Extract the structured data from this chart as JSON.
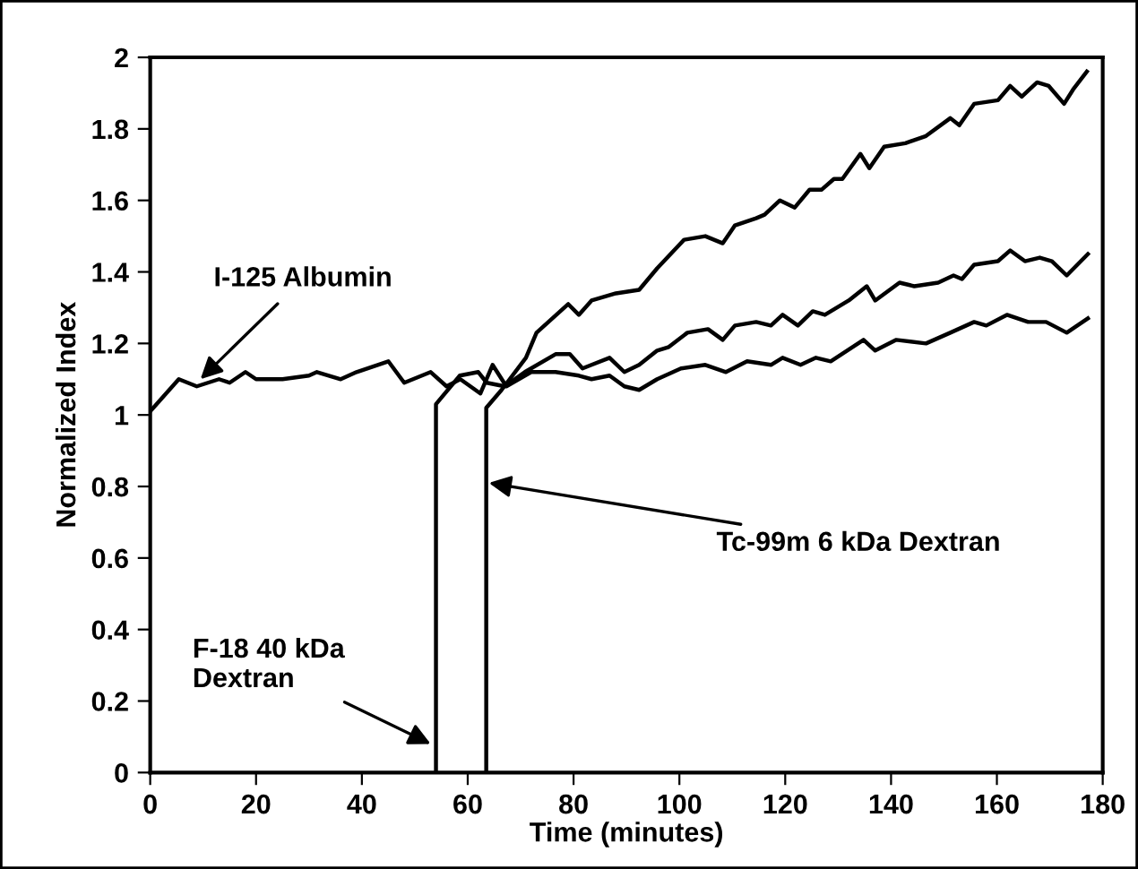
{
  "chart_data": {
    "type": "line",
    "xlabel": "Time (minutes)",
    "ylabel": "Normalized Index",
    "xlim": [
      0,
      180
    ],
    "xticks": [
      0,
      20,
      40,
      60,
      80,
      100,
      120,
      140,
      160,
      180
    ],
    "ylim": [
      0,
      2
    ],
    "yticks": [
      0,
      0.2,
      0.4,
      0.6,
      0.8,
      1,
      1.2,
      1.4,
      1.6,
      1.8,
      2
    ],
    "grid": false,
    "legend": false,
    "marker": "none",
    "line_style": "solid",
    "series": [
      {
        "color": "#000000",
        "x": [
          0,
          5.4,
          8.8,
          13,
          15,
          18,
          20,
          25,
          30,
          31.5,
          36,
          39,
          45,
          48,
          53,
          56,
          58.6,
          62.4,
          64.7,
          67.3,
          72,
          76.6,
          81,
          83.4,
          86.8,
          89.6,
          92.4,
          95.8,
          100.3,
          104.9,
          108.8,
          112.8,
          117.3,
          119.5,
          122.9,
          125.8,
          128.6,
          134.8,
          137,
          141,
          146.6,
          151.2,
          155.7,
          158,
          161.9,
          165.9,
          169.3,
          173.2,
          177.2
        ],
        "values": [
          1.01,
          1.1,
          1.08,
          1.1,
          1.09,
          1.12,
          1.1,
          1.1,
          1.11,
          1.12,
          1.1,
          1.12,
          1.15,
          1.09,
          1.12,
          1.08,
          1.1,
          1.06,
          1.14,
          1.08,
          1.12,
          1.12,
          1.11,
          1.1,
          1.11,
          1.08,
          1.07,
          1.1,
          1.13,
          1.14,
          1.12,
          1.15,
          1.14,
          1.16,
          1.14,
          1.16,
          1.15,
          1.21,
          1.18,
          1.21,
          1.2,
          1.23,
          1.26,
          1.25,
          1.28,
          1.26,
          1.26,
          1.23,
          1.27
        ]
      },
      {
        "color": "#000000",
        "x": [
          54,
          54,
          58.5,
          62,
          63.6,
          67,
          70.8,
          76.6,
          79.3,
          81.7,
          83.4,
          86.8,
          89.6,
          92.4,
          95.8,
          98,
          101.5,
          105.4,
          108.2,
          110.5,
          114.5,
          117.3,
          119.5,
          122.4,
          125.2,
          127.5,
          132,
          135.4,
          137,
          141.6,
          144.4,
          148.9,
          151.8,
          153.4,
          155.7,
          160.2,
          162.5,
          165.3,
          168.1,
          170.4,
          173.2,
          177.2
        ],
        "values": [
          0,
          1.03,
          1.11,
          1.12,
          1.09,
          1.08,
          1.12,
          1.17,
          1.17,
          1.13,
          1.14,
          1.16,
          1.12,
          1.14,
          1.18,
          1.19,
          1.23,
          1.24,
          1.21,
          1.25,
          1.26,
          1.25,
          1.28,
          1.25,
          1.29,
          1.28,
          1.32,
          1.36,
          1.32,
          1.37,
          1.36,
          1.37,
          1.39,
          1.38,
          1.42,
          1.43,
          1.46,
          1.43,
          1.44,
          1.43,
          1.39,
          1.45
        ]
      },
      {
        "color": "#000000",
        "x": [
          63.5,
          63.5,
          66.4,
          71,
          73,
          79,
          81,
          83.4,
          88,
          92.4,
          95.8,
          100.9,
          104.9,
          108.2,
          110.5,
          114.5,
          116.1,
          119,
          121.8,
          124.6,
          126.9,
          129.2,
          130.8,
          134.2,
          135.9,
          138.7,
          142.7,
          146.6,
          151.2,
          152.9,
          155.7,
          160.2,
          162.5,
          164.7,
          167.6,
          169.8,
          172.7,
          174.4,
          177
        ],
        "values": [
          0,
          1.02,
          1.07,
          1.16,
          1.23,
          1.31,
          1.28,
          1.32,
          1.34,
          1.35,
          1.41,
          1.49,
          1.5,
          1.48,
          1.53,
          1.55,
          1.56,
          1.6,
          1.58,
          1.63,
          1.63,
          1.66,
          1.66,
          1.73,
          1.69,
          1.75,
          1.76,
          1.78,
          1.83,
          1.81,
          1.87,
          1.88,
          1.92,
          1.89,
          1.93,
          1.92,
          1.87,
          1.91,
          1.96
        ]
      }
    ],
    "annotations": [
      {
        "text": "I-125 Albumin",
        "x": 9.5,
        "y": 1.1
      },
      {
        "text": "F-18 40 kDa\nDextran",
        "x": 53,
        "y": 0.08
      },
      {
        "text": "Tc-99m 6 kDa Dextran",
        "x": 64,
        "y": 0.81
      }
    ]
  }
}
